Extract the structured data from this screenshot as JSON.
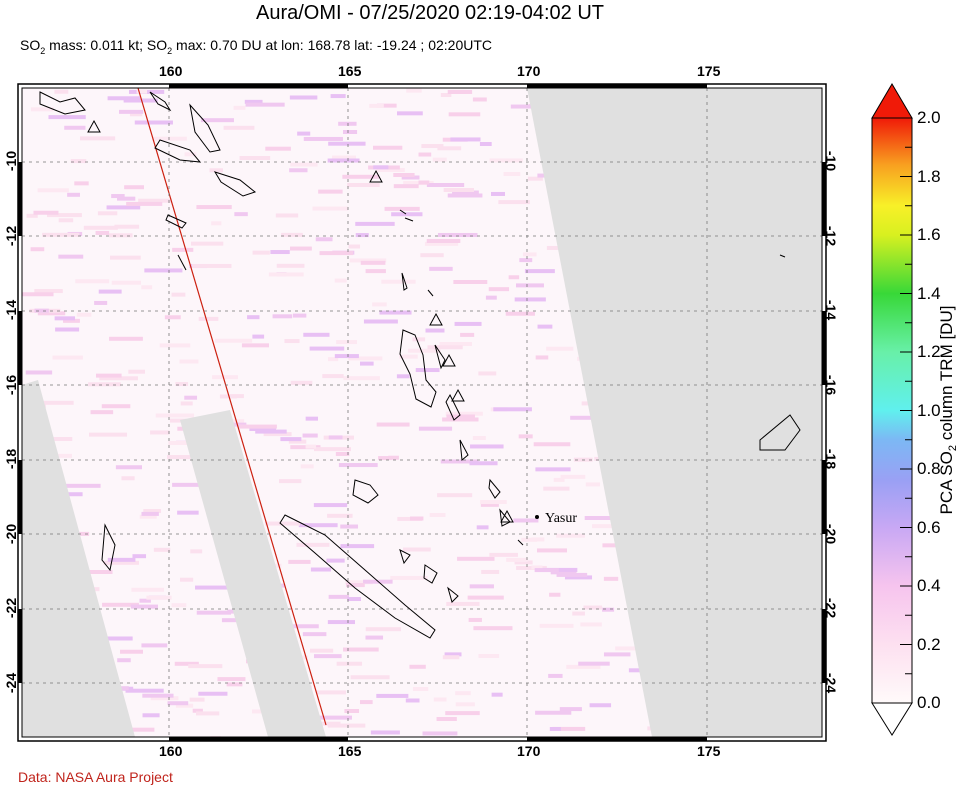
{
  "title": "Aura/OMI - 07/25/2020 02:19-04:02 UT",
  "subtitle": {
    "so2_label": "SO",
    "mass_text": " mass: 0.011 kt; SO",
    "max_text": " max: 0.70 DU at lon: 168.78 lat: -19.24 ; 02:20UTC",
    "sub2": "2"
  },
  "credit": "Data: NASA Aura Project",
  "map": {
    "lon_ticks": [
      "160",
      "165",
      "170",
      "175"
    ],
    "lat_ticks": [
      "-10",
      "-12",
      "-14",
      "-16",
      "-18",
      "-20",
      "-22",
      "-24"
    ],
    "volcano_label": "Yasur",
    "colors": {
      "no_data": "#e0e0e0",
      "coast": "#000000",
      "orbit_line": "#cc2010"
    }
  },
  "colorbar": {
    "title_prefix": "PCA SO",
    "title_sub": "2",
    "title_suffix": " column TRM [DU]",
    "labels": [
      "2.0",
      "1.8",
      "1.6",
      "1.4",
      "1.2",
      "1.0",
      "0.8",
      "0.6",
      "0.4",
      "0.2",
      "0.0"
    ],
    "range": [
      0.0,
      2.0
    ]
  }
}
